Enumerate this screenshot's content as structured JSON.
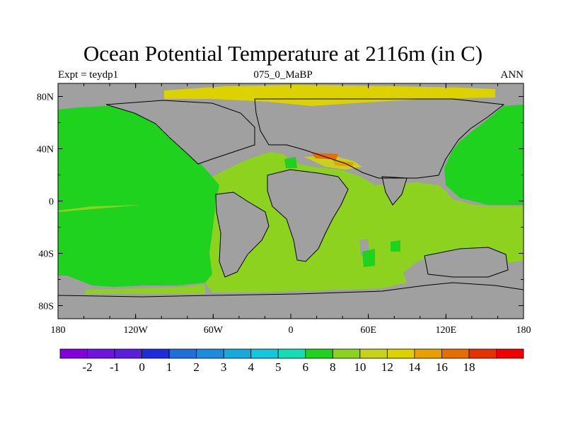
{
  "title": "Ocean Potential Temperature at 2116m (in C)",
  "left_label": "Expt = teydp1",
  "center_label": "075_0_MaBP",
  "right_label": "ANN",
  "map": {
    "lon_range": [
      -180,
      180
    ],
    "lat_range": [
      -90,
      90
    ],
    "x_ticks": [
      {
        "lon": -180,
        "label": "180"
      },
      {
        "lon": -120,
        "label": "120W"
      },
      {
        "lon": -60,
        "label": "60W"
      },
      {
        "lon": 0,
        "label": "0"
      },
      {
        "lon": 60,
        "label": "60E"
      },
      {
        "lon": 120,
        "label": "120E"
      },
      {
        "lon": 180,
        "label": "180"
      }
    ],
    "y_ticks": [
      {
        "lat": 80,
        "label": "80N"
      },
      {
        "lat": 40,
        "label": "40N"
      },
      {
        "lat": 0,
        "label": "0"
      },
      {
        "lat": -40,
        "label": "40S"
      },
      {
        "lat": -80,
        "label": "80S"
      }
    ],
    "land_color": "#a0a0a0",
    "colors": {
      "t6": "#1ed21e",
      "t8": "#8cd21e",
      "t10": "#c8d21e",
      "t12": "#dcd200",
      "t14": "#e6a000",
      "t16": "#e66e00"
    }
  },
  "colorbar": {
    "colors": [
      "#8200dc",
      "#6e14dc",
      "#5a1edc",
      "#1e2ddc",
      "#1e6edc",
      "#1e8cdc",
      "#14aadc",
      "#14c8dc",
      "#14dcb4",
      "#1ed21e",
      "#8cd21e",
      "#c8d21e",
      "#dcd200",
      "#e6a000",
      "#e66e00",
      "#e63200",
      "#f00000"
    ],
    "labels": [
      "-2",
      "-1",
      "0",
      "1",
      "2",
      "3",
      "4",
      "5",
      "6",
      "8",
      "10",
      "12",
      "14",
      "16",
      "18"
    ]
  }
}
